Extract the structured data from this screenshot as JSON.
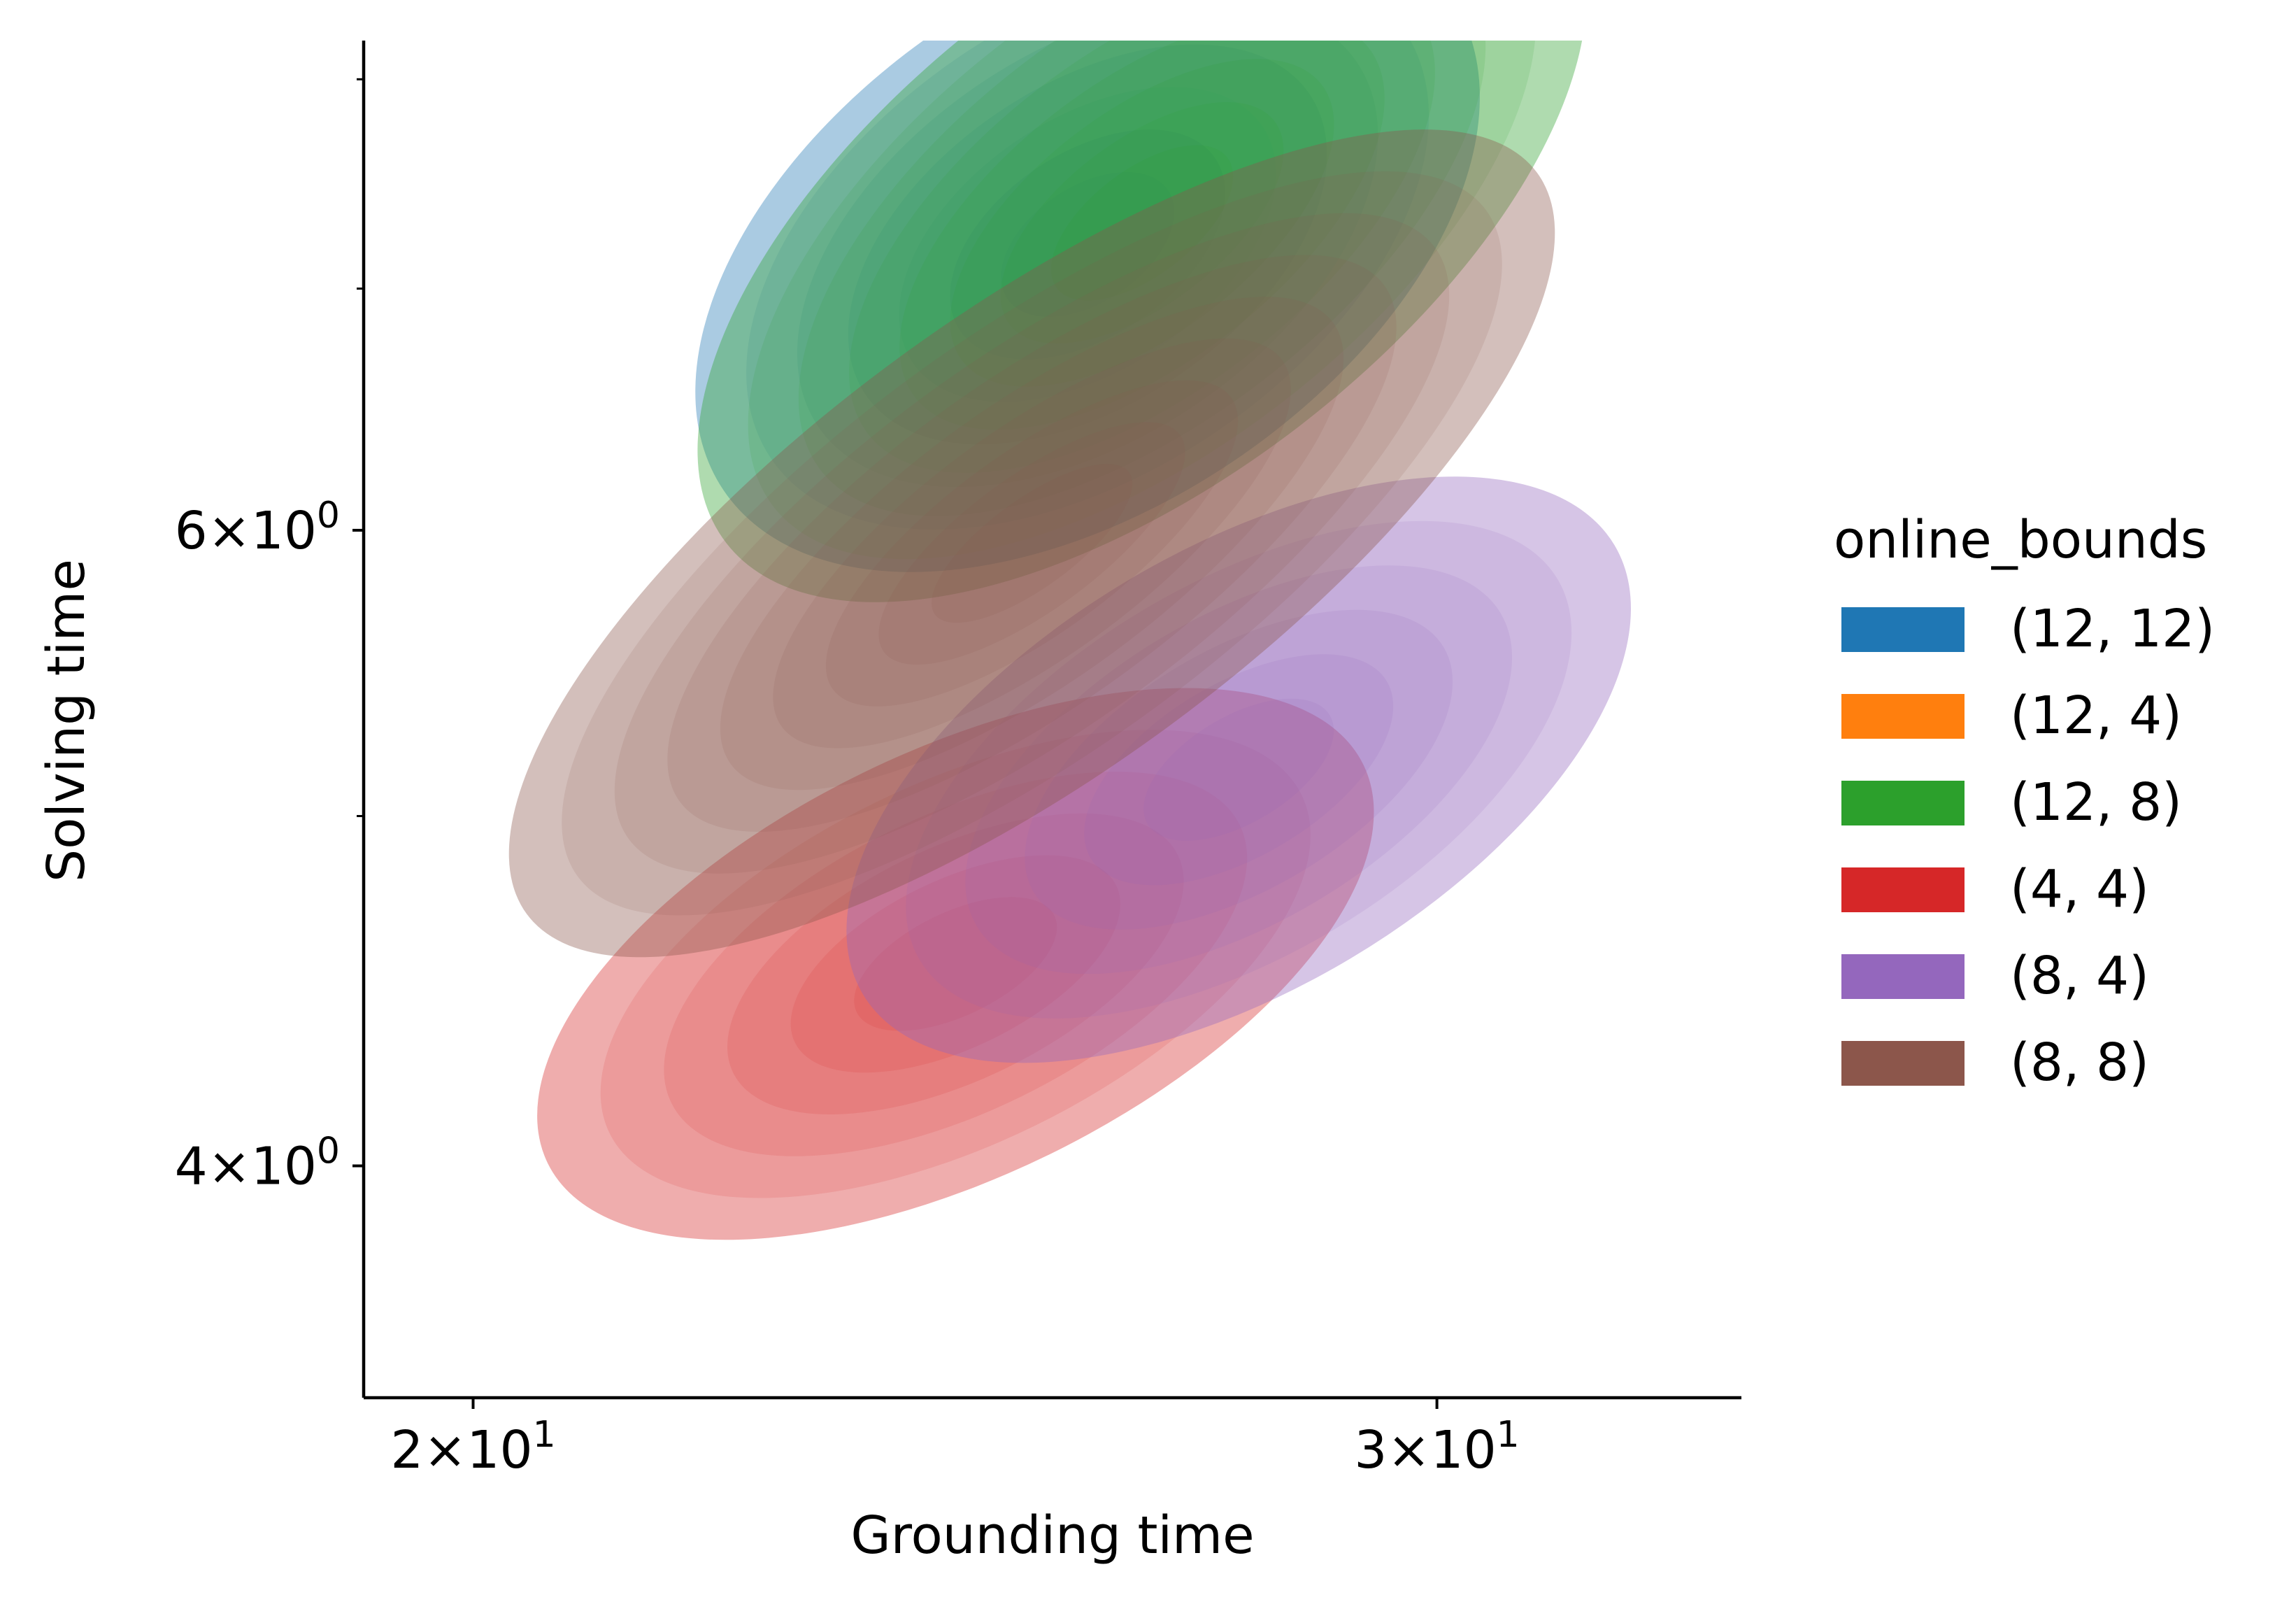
{
  "chart_data": {
    "type": "kde-contour",
    "xlabel": "Grounding time",
    "ylabel": "Solving time",
    "xscale": "log",
    "yscale": "log",
    "xlim": [
      19.1,
      34.1
    ],
    "ylim": [
      3.45,
      8.2
    ],
    "x_ticks": [
      {
        "value": 20,
        "base": "2",
        "exp": "1"
      },
      {
        "value": 30,
        "base": "3",
        "exp": "1"
      }
    ],
    "y_ticks": [
      {
        "value": 4,
        "base": "4",
        "exp": "0"
      },
      {
        "value": 6,
        "base": "6",
        "exp": "0"
      }
    ],
    "y_minor_ticks": [
      5,
      7,
      8
    ],
    "legend": {
      "title": "online_bounds",
      "placement": "right",
      "entries": [
        {
          "label": "(12, 12)",
          "color": "#1f77b4"
        },
        {
          "label": "(12, 4)",
          "color": "#ff7f0e"
        },
        {
          "label": "(12, 8)",
          "color": "#2ca02c"
        },
        {
          "label": "(4, 4)",
          "color": "#d62728"
        },
        {
          "label": "(8, 4)",
          "color": "#9467bd"
        },
        {
          "label": "(8, 8)",
          "color": "#8c564b"
        }
      ]
    },
    "series": [
      {
        "name": "(12, 12)",
        "color": "#1f77b4",
        "peak": [
          25.9,
          7.2
        ],
        "sigma_logx": 0.075,
        "sigma_logy": 0.095,
        "corr": 0.45,
        "levels": 7
      },
      {
        "name": "(12, 8)",
        "color": "#2ca02c",
        "peak": [
          26.5,
          7.3
        ],
        "sigma_logx": 0.085,
        "sigma_logy": 0.11,
        "corr": 0.6,
        "levels": 8
      },
      {
        "name": "(4, 4)",
        "color": "#d62728",
        "peak": [
          24.5,
          4.55
        ],
        "sigma_logx": 0.08,
        "sigma_logy": 0.08,
        "corr": 0.55,
        "levels": 6
      },
      {
        "name": "(8, 4)",
        "color": "#9467bd",
        "peak": [
          27.6,
          5.15
        ],
        "sigma_logx": 0.075,
        "sigma_logy": 0.085,
        "corr": 0.55,
        "levels": 6
      },
      {
        "name": "(8, 8)",
        "color": "#8c564b",
        "peak": [
          25.3,
          5.95
        ],
        "sigma_logx": 0.1,
        "sigma_logy": 0.12,
        "corr": 0.75,
        "levels": 9
      }
    ]
  }
}
